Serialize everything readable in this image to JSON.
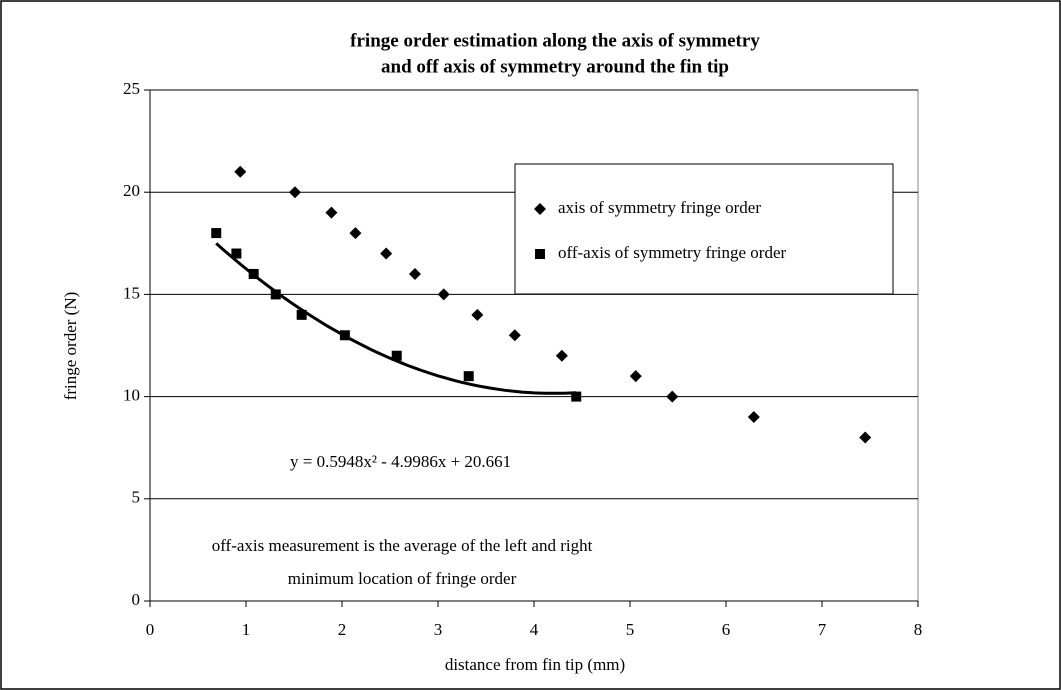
{
  "chart_data": {
    "type": "scatter",
    "title": [
      "fringe order estimation along the axis of symmetry",
      "and off axis of symmetry around the fin tip"
    ],
    "xlabel": "distance from fin tip (mm)",
    "ylabel": "fringe order  (N)",
    "xlim": [
      0,
      8
    ],
    "xticks": [
      0,
      1,
      2,
      3,
      4,
      5,
      6,
      7,
      8
    ],
    "ylim": [
      0,
      25
    ],
    "yticks": [
      0,
      5,
      10,
      15,
      20,
      25
    ],
    "grid": true,
    "legend": "upper right",
    "series": [
      {
        "name": "axis of symmetry fringe order",
        "color": "#000000",
        "marker": "diamond",
        "x": [
          0.94,
          1.51,
          1.89,
          2.14,
          2.46,
          2.76,
          3.06,
          3.41,
          3.8,
          4.29,
          5.06,
          5.44,
          6.29,
          7.45
        ],
        "values": [
          21,
          20,
          19,
          18,
          17,
          16,
          15,
          14,
          13,
          12,
          11,
          10,
          9,
          8
        ]
      },
      {
        "name": "off-axis of symmetry fringe order",
        "color": "#000000",
        "marker": "square",
        "x": [
          0.69,
          0.9,
          1.08,
          1.31,
          1.58,
          2.03,
          2.57,
          3.32,
          4.44
        ],
        "values": [
          18,
          17,
          16,
          15,
          14,
          13,
          12,
          11,
          10
        ]
      }
    ],
    "trendline": {
      "label": "y = 0.5948x² - 4.9986x + 20.661",
      "coefficients": [
        0.5948,
        -4.9986,
        20.661
      ]
    },
    "annotation": [
      "off-axis measurement is the average of the left and right",
      "minimum location of fringe order"
    ]
  }
}
